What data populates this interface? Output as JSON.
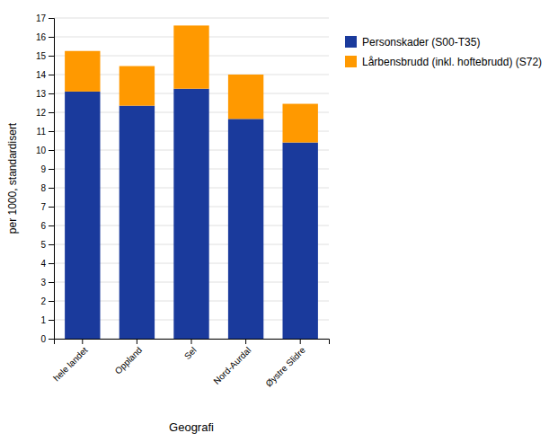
{
  "chart_data": {
    "type": "bar",
    "stacked": true,
    "categories": [
      "hele landet",
      "Oppland",
      "Sel",
      "Nord-Aurdal",
      "Øystre Slidre"
    ],
    "series": [
      {
        "name": "Personskader (S00-T35)",
        "color": "#1a3a9c",
        "values": [
          13.1,
          12.35,
          13.25,
          11.65,
          10.4
        ]
      },
      {
        "name": "Lårbensbrudd (inkl. hoftebrudd) (S72)",
        "color": "#ff9900",
        "values": [
          2.15,
          2.1,
          3.35,
          2.35,
          2.05
        ]
      }
    ],
    "xlabel": "Geografi",
    "ylabel": "per 1000, standardisert",
    "ylim": [
      0,
      17
    ],
    "yticks": [
      0,
      1,
      2,
      3,
      4,
      5,
      6,
      7,
      8,
      9,
      10,
      11,
      12,
      13,
      14,
      15,
      16,
      17
    ],
    "grid": true,
    "legend": "right"
  }
}
